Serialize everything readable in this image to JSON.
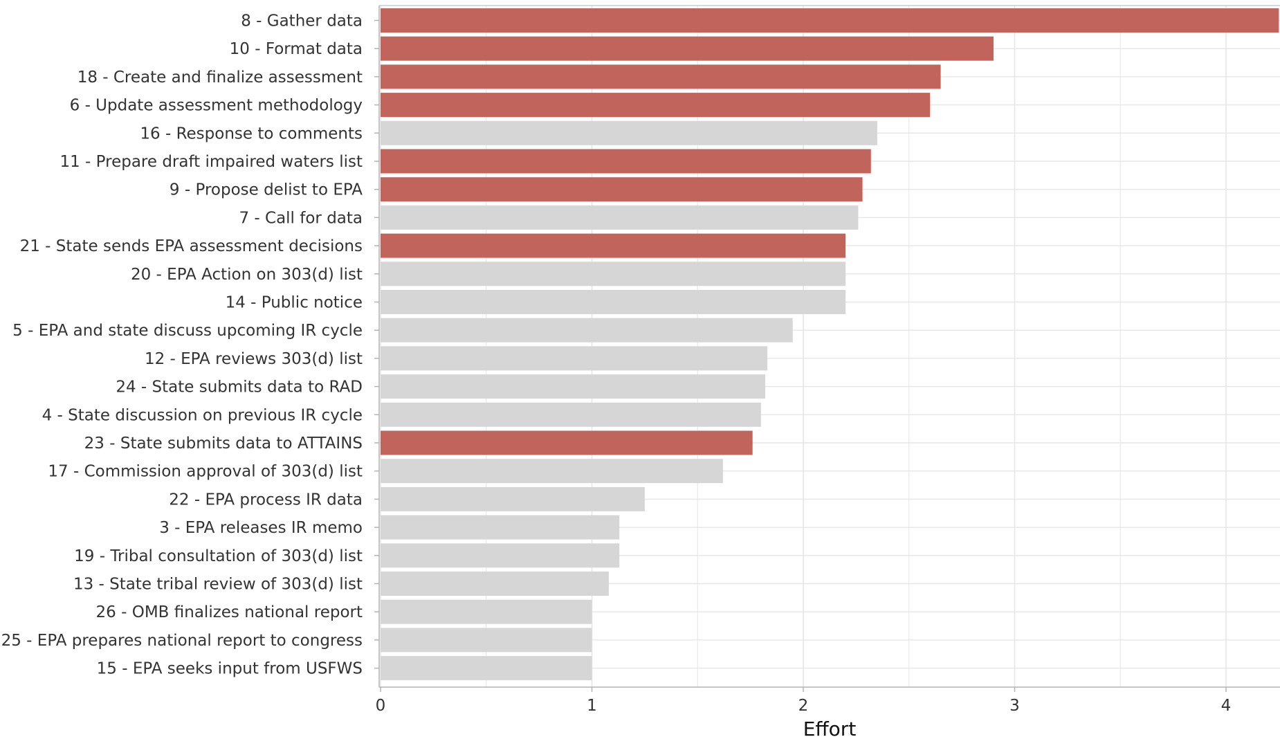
{
  "chart_data": {
    "type": "bar",
    "orientation": "horizontal",
    "xlabel": "Effort",
    "ylabel": "",
    "xlim": [
      0,
      4.25
    ],
    "x_ticks": [
      0,
      1,
      2,
      3,
      4
    ],
    "grid": true,
    "colors": {
      "highlight": "#c0645c",
      "default": "#d6d6d6",
      "grid": "#e6e6e6",
      "axis": "#b3b3b3"
    },
    "categories": [
      "8 - Gather data",
      "10 - Format data",
      "18 - Create and finalize assessment",
      "6 - Update assessment methodology",
      "16 - Response to comments",
      "11 - Prepare draft impaired waters list",
      "9 - Propose delist to EPA",
      "7 - Call for data",
      "21 - State sends EPA assessment decisions",
      "20 - EPA Action on 303(d) list",
      "14 - Public notice",
      "5 - EPA and state discuss upcoming IR cycle",
      "12 - EPA reviews 303(d)  list",
      "24 - State submits data to RAD",
      "4 - State discussion on previous IR cycle",
      "23 - State submits data to ATTAINS",
      "17 - Commission approval of 303(d) list",
      "22 - EPA process IR data",
      "3 - EPA releases IR memo",
      "19 - Tribal consultation of 303(d) list",
      "13 - State tribal review of 303(d) list",
      "26 - OMB finalizes national report",
      "25 - EPA prepares national report to congress",
      "15 - EPA seeks input from USFWS"
    ],
    "values": [
      4.25,
      2.9,
      2.65,
      2.6,
      2.35,
      2.32,
      2.28,
      2.26,
      2.2,
      2.2,
      2.2,
      1.95,
      1.83,
      1.82,
      1.8,
      1.76,
      1.62,
      1.25,
      1.13,
      1.13,
      1.08,
      1.0,
      1.0,
      1.0
    ],
    "highlighted": [
      true,
      true,
      true,
      true,
      false,
      true,
      true,
      false,
      true,
      false,
      false,
      false,
      false,
      false,
      false,
      true,
      false,
      false,
      false,
      false,
      false,
      false,
      false,
      false
    ]
  }
}
